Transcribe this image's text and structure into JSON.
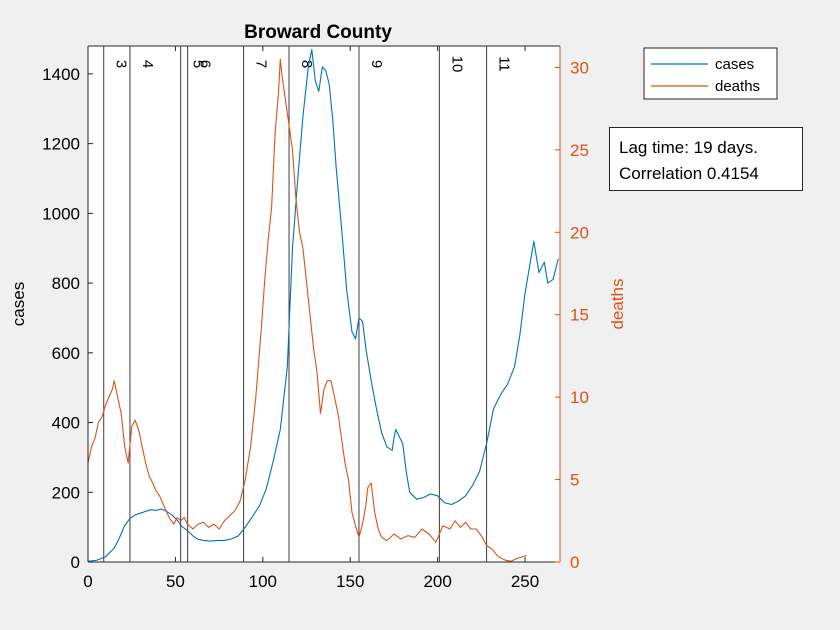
{
  "info_box": {
    "lag_text": "Lag time: 19 days.",
    "corr_text": "Correlation 0.4154"
  },
  "colors": {
    "cases": "#0072bd",
    "deaths": "#d95319",
    "background": "#f0f0f0",
    "axes": "#262626"
  },
  "chart_data": {
    "type": "line",
    "title": "Broward County",
    "xlabel": "",
    "ylabel_left": "cases",
    "ylabel_right": "deaths",
    "xlim": [
      0,
      270
    ],
    "ylim_left": [
      0,
      1480
    ],
    "ylim_right": [
      0,
      31.3
    ],
    "xticks": [
      0,
      50,
      100,
      150,
      200,
      250
    ],
    "yticks_left": [
      0,
      200,
      400,
      600,
      800,
      1000,
      1200,
      1400
    ],
    "yticks_right": [
      0,
      5,
      10,
      15,
      20,
      25,
      30
    ],
    "legend": {
      "placement": "top-right outside",
      "entries": [
        "cases",
        "deaths"
      ]
    },
    "grid": false,
    "vertical_lines": [
      {
        "x": 9,
        "label": "3"
      },
      {
        "x": 24,
        "label": "4"
      },
      {
        "x": 53,
        "label": "5"
      },
      {
        "x": 57,
        "label": "6"
      },
      {
        "x": 89,
        "label": "7"
      },
      {
        "x": 115,
        "label": "8"
      },
      {
        "x": 155,
        "label": "9"
      },
      {
        "x": 201,
        "label": "10"
      },
      {
        "x": 228,
        "label": "11"
      }
    ],
    "series": [
      {
        "name": "cases",
        "axis": "left",
        "points": [
          [
            0,
            2
          ],
          [
            5,
            5
          ],
          [
            10,
            15
          ],
          [
            15,
            40
          ],
          [
            18,
            70
          ],
          [
            21,
            105
          ],
          [
            24,
            125
          ],
          [
            27,
            135
          ],
          [
            30,
            140
          ],
          [
            33,
            145
          ],
          [
            36,
            150
          ],
          [
            39,
            148
          ],
          [
            42,
            152
          ],
          [
            45,
            145
          ],
          [
            48,
            135
          ],
          [
            51,
            120
          ],
          [
            54,
            100
          ],
          [
            57,
            90
          ],
          [
            60,
            75
          ],
          [
            63,
            65
          ],
          [
            66,
            62
          ],
          [
            70,
            60
          ],
          [
            74,
            62
          ],
          [
            78,
            62
          ],
          [
            82,
            66
          ],
          [
            86,
            75
          ],
          [
            90,
            100
          ],
          [
            94,
            130
          ],
          [
            98,
            160
          ],
          [
            102,
            210
          ],
          [
            106,
            290
          ],
          [
            110,
            380
          ],
          [
            114,
            560
          ],
          [
            117,
            900
          ],
          [
            120,
            1100
          ],
          [
            123,
            1280
          ],
          [
            126,
            1420
          ],
          [
            128,
            1470
          ],
          [
            130,
            1380
          ],
          [
            132,
            1350
          ],
          [
            134,
            1420
          ],
          [
            136,
            1410
          ],
          [
            138,
            1370
          ],
          [
            140,
            1270
          ],
          [
            142,
            1130
          ],
          [
            145,
            960
          ],
          [
            148,
            780
          ],
          [
            151,
            660
          ],
          [
            153,
            640
          ],
          [
            155,
            700
          ],
          [
            157,
            690
          ],
          [
            159,
            610
          ],
          [
            162,
            520
          ],
          [
            165,
            440
          ],
          [
            168,
            370
          ],
          [
            171,
            330
          ],
          [
            174,
            320
          ],
          [
            175,
            355
          ],
          [
            176,
            380
          ],
          [
            178,
            360
          ],
          [
            180,
            340
          ],
          [
            182,
            260
          ],
          [
            184,
            200
          ],
          [
            188,
            180
          ],
          [
            192,
            185
          ],
          [
            196,
            195
          ],
          [
            200,
            190
          ],
          [
            204,
            170
          ],
          [
            208,
            165
          ],
          [
            212,
            175
          ],
          [
            216,
            190
          ],
          [
            220,
            220
          ],
          [
            224,
            260
          ],
          [
            228,
            340
          ],
          [
            232,
            440
          ],
          [
            236,
            480
          ],
          [
            240,
            510
          ],
          [
            244,
            560
          ],
          [
            247,
            650
          ],
          [
            250,
            770
          ],
          [
            253,
            860
          ],
          [
            255,
            920
          ],
          [
            258,
            830
          ],
          [
            261,
            860
          ],
          [
            263,
            800
          ],
          [
            266,
            810
          ],
          [
            269,
            870
          ]
        ]
      },
      {
        "name": "deaths",
        "axis": "right",
        "points": [
          [
            0,
            6.0
          ],
          [
            2,
            7.0
          ],
          [
            4,
            7.5
          ],
          [
            6,
            8.5
          ],
          [
            8,
            8.8
          ],
          [
            10,
            9.5
          ],
          [
            12,
            10.0
          ],
          [
            14,
            10.5
          ],
          [
            15,
            11.0
          ],
          [
            17,
            10.0
          ],
          [
            19,
            9.0
          ],
          [
            21,
            7.0
          ],
          [
            23,
            6.0
          ],
          [
            25,
            8.2
          ],
          [
            27,
            8.6
          ],
          [
            29,
            8.0
          ],
          [
            31,
            7.0
          ],
          [
            33,
            6.0
          ],
          [
            35,
            5.2
          ],
          [
            37,
            4.8
          ],
          [
            39,
            4.3
          ],
          [
            41,
            4.0
          ],
          [
            43,
            3.5
          ],
          [
            45,
            3.0
          ],
          [
            47,
            2.6
          ],
          [
            49,
            2.3
          ],
          [
            51,
            2.7
          ],
          [
            53,
            2.5
          ],
          [
            55,
            2.7
          ],
          [
            57,
            2.3
          ],
          [
            60,
            2.0
          ],
          [
            63,
            2.3
          ],
          [
            66,
            2.4
          ],
          [
            69,
            2.1
          ],
          [
            72,
            2.3
          ],
          [
            75,
            2.0
          ],
          [
            78,
            2.5
          ],
          [
            81,
            2.8
          ],
          [
            84,
            3.1
          ],
          [
            87,
            3.7
          ],
          [
            90,
            5.0
          ],
          [
            93,
            7.0
          ],
          [
            96,
            10.0
          ],
          [
            99,
            14.0
          ],
          [
            101,
            17.0
          ],
          [
            103,
            19.5
          ],
          [
            105,
            21.5
          ],
          [
            107,
            26.0
          ],
          [
            109,
            28.5
          ],
          [
            110,
            30.5
          ],
          [
            111,
            29.5
          ],
          [
            113,
            28.0
          ],
          [
            115,
            26.5
          ],
          [
            117,
            25.0
          ],
          [
            119,
            22.0
          ],
          [
            121,
            20.0
          ],
          [
            123,
            19.0
          ],
          [
            125,
            17.0
          ],
          [
            127,
            15.0
          ],
          [
            129,
            13.0
          ],
          [
            131,
            11.5
          ],
          [
            133,
            9.0
          ],
          [
            135,
            10.5
          ],
          [
            137,
            11.0
          ],
          [
            139,
            11.0
          ],
          [
            141,
            10.0
          ],
          [
            143,
            9.0
          ],
          [
            145,
            7.5
          ],
          [
            147,
            6.0
          ],
          [
            149,
            5.0
          ],
          [
            151,
            3.0
          ],
          [
            153,
            2.2
          ],
          [
            155,
            1.5
          ],
          [
            157,
            2.3
          ],
          [
            159,
            3.5
          ],
          [
            160,
            4.5
          ],
          [
            162,
            4.8
          ],
          [
            164,
            3.0
          ],
          [
            166,
            2.0
          ],
          [
            168,
            1.5
          ],
          [
            171,
            1.3
          ],
          [
            175,
            1.7
          ],
          [
            179,
            1.4
          ],
          [
            183,
            1.6
          ],
          [
            187,
            1.5
          ],
          [
            191,
            2.0
          ],
          [
            195,
            1.7
          ],
          [
            199,
            1.2
          ],
          [
            203,
            2.2
          ],
          [
            207,
            2.0
          ],
          [
            210,
            2.5
          ],
          [
            213,
            2.1
          ],
          [
            216,
            2.4
          ],
          [
            219,
            2.0
          ],
          [
            222,
            2.0
          ],
          [
            225,
            1.6
          ],
          [
            228,
            1.0
          ],
          [
            231,
            0.8
          ],
          [
            234,
            0.4
          ],
          [
            236,
            0.25
          ],
          [
            239,
            0.1
          ],
          [
            242,
            0.05
          ],
          [
            245,
            0.2
          ],
          [
            248,
            0.3
          ],
          [
            251,
            0.4
          ]
        ]
      }
    ]
  }
}
